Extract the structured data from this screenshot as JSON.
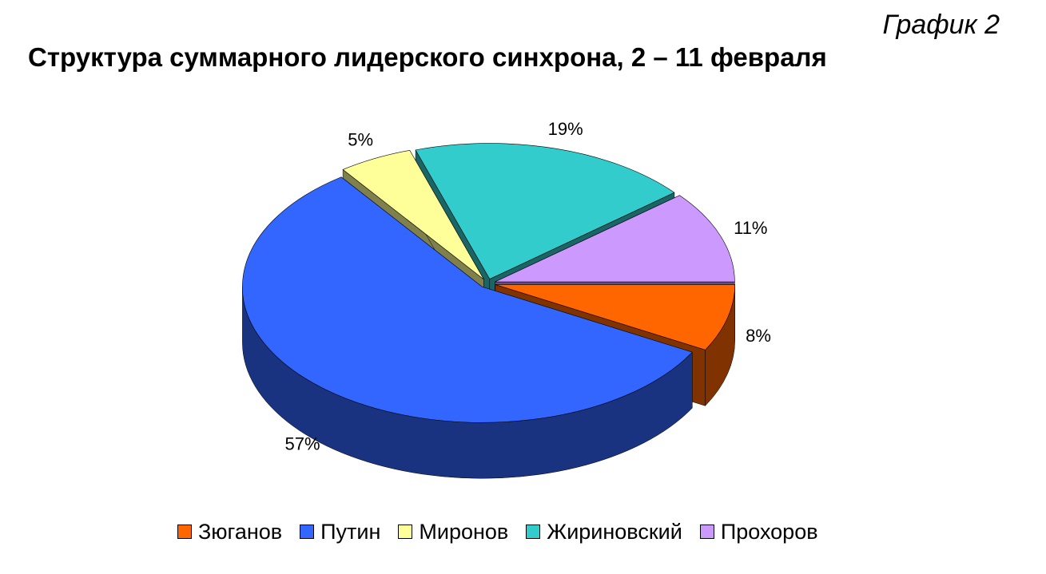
{
  "caption": "График 2",
  "chart_data": {
    "type": "pie",
    "title": "Структура суммарного лидерского синхрона, 2 – 11 февраля",
    "categories": [
      "Зюганов",
      "Путин",
      "Миронов",
      "Жириновский",
      "Прохоров"
    ],
    "values": [
      8,
      57,
      5,
      19,
      11
    ],
    "value_labels": [
      "8%",
      "57%",
      "5%",
      "19%",
      "11%"
    ],
    "colors": [
      "#ff6600",
      "#3366ff",
      "#ffff99",
      "#33cccc",
      "#cc99ff"
    ],
    "legend": "bottom"
  }
}
